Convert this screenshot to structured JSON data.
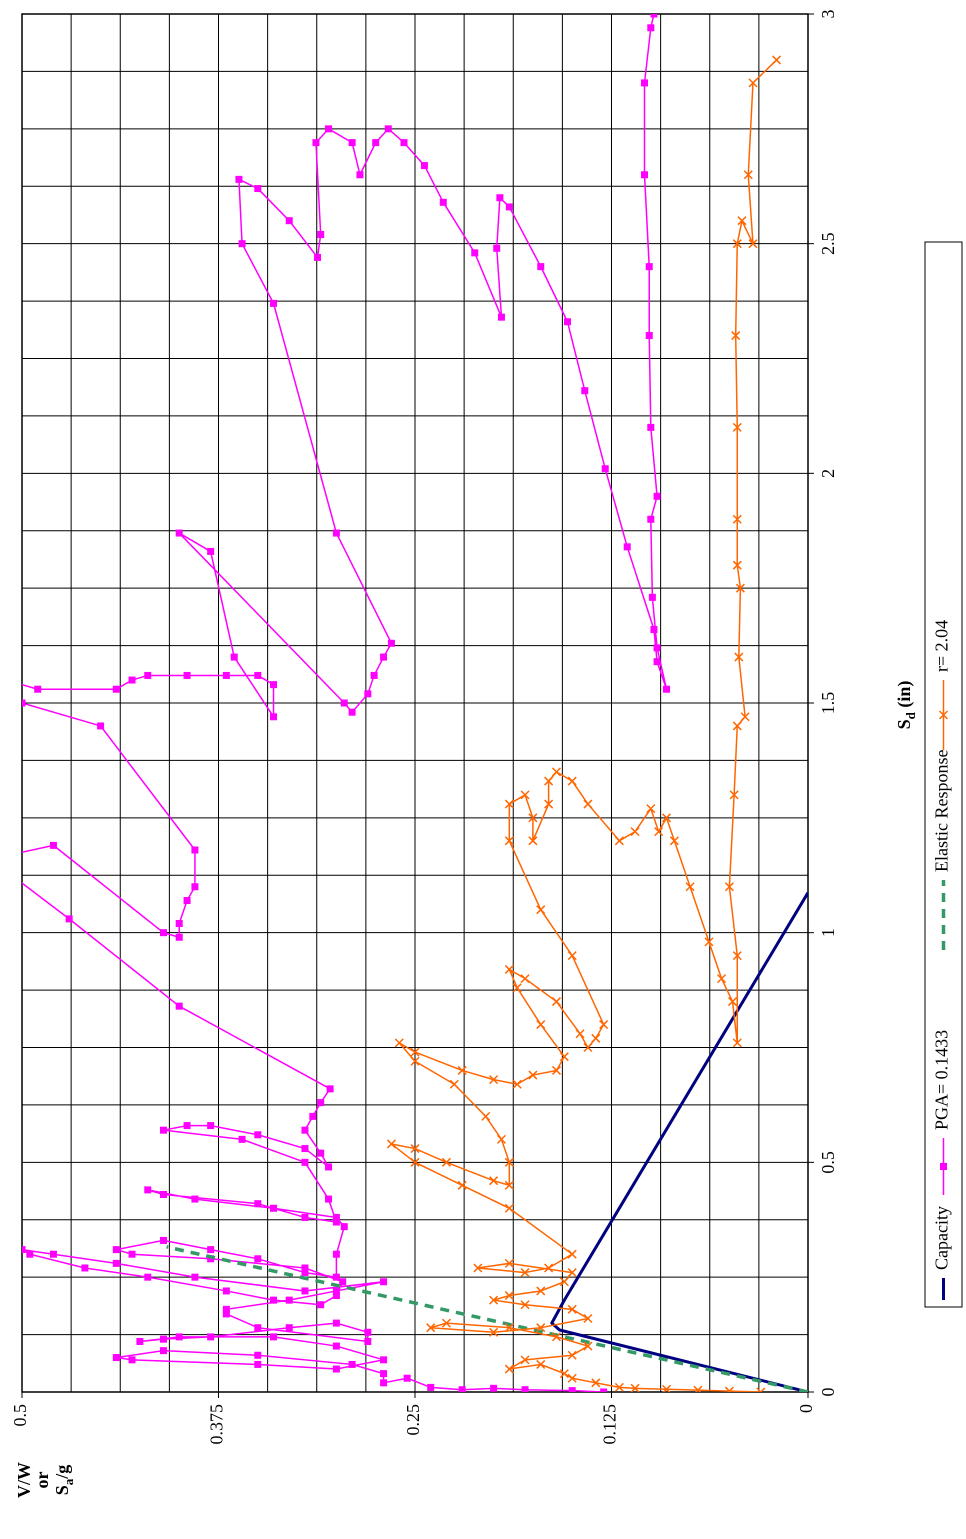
{
  "chart_data": {
    "type": "line",
    "x_label": [
      "S",
      "d",
      " (in)"
    ],
    "y_label": [
      "V/W",
      "or",
      "S",
      "a",
      "/g"
    ],
    "xlim": [
      0,
      3
    ],
    "xticks": [
      0,
      0.5,
      1,
      1.5,
      2,
      2.5,
      3
    ],
    "x_grid_step": 0.125,
    "ylim": [
      0,
      0.5
    ],
    "yticks": [
      0,
      0.125,
      0.25,
      0.375,
      0.5
    ],
    "y_grid_step": 0.03125,
    "grid": true,
    "legend": "bottom",
    "rotation": -90,
    "series": [
      {
        "name": "Capacity",
        "color": "#000080",
        "marker": "none",
        "line_style": "solid",
        "line_width": 3,
        "x": [
          0,
          0.135,
          0.15,
          0.2,
          1.087
        ],
        "values": [
          0,
          0.158,
          0.163,
          0.155,
          0
        ]
      },
      {
        "name": "PGA= 0.1433",
        "color": "#ff00ff",
        "marker": "square",
        "line_style": "solid",
        "line_width": 1.5,
        "x": [
          0,
          0.003,
          0.005,
          0.008,
          0.005,
          0.01,
          0.03,
          0.02,
          0.04,
          0.06,
          0.08,
          0.09,
          0.075,
          0.07,
          0.06,
          0.05,
          0.07,
          0.1,
          0.12,
          0.12,
          0.11,
          0.115,
          0.12,
          0.14,
          0.15,
          0.13,
          0.11,
          0.14,
          0.17,
          0.18,
          0.2,
          0.22,
          0.24,
          0.22,
          0.25,
          0.28,
          0.3,
          0.31,
          0.3,
          0.27,
          0.25,
          0.22,
          0.2,
          0.19,
          0.21,
          0.24,
          0.27,
          0.29,
          0.3,
          0.31,
          0.33,
          0.31,
          0.29,
          0.26,
          0.25,
          0.3,
          0.36,
          0.38,
          0.4,
          0.42,
          0.44,
          0.43,
          0.41,
          0.38,
          0.37,
          0.42,
          0.5,
          0.55,
          0.57,
          0.58,
          0.58,
          0.56,
          0.53,
          0.49,
          0.52,
          0.57,
          0.6,
          0.63,
          0.66,
          0.84,
          1.03,
          1.16,
          1.19,
          1.0,
          0.99,
          1.02,
          1.07,
          1.1,
          1.18,
          1.45,
          1.5,
          1.56,
          1.53,
          1.53,
          1.55,
          1.56,
          1.56,
          1.56,
          1.56,
          1.54,
          1.47,
          1.6,
          1.83,
          1.87,
          1.5,
          1.48,
          1.52,
          1.56,
          1.6,
          1.63,
          1.87,
          2.37,
          2.5,
          2.64,
          2.62,
          2.55,
          2.47,
          2.52,
          2.72,
          2.75,
          2.72,
          2.65,
          2.72,
          2.75,
          2.72,
          2.67,
          2.59,
          2.48,
          2.34,
          2.49,
          2.6,
          2.58,
          2.45,
          2.33,
          2.18,
          2.01,
          1.84,
          1.66,
          1.59,
          1.53,
          1.62,
          1.73,
          1.9,
          1.95,
          2.1,
          2.3,
          2.45,
          2.65,
          2.85,
          2.97,
          3.0
        ],
        "values": [
          0.13,
          0.15,
          0.18,
          0.2,
          0.22,
          0.24,
          0.255,
          0.27,
          0.27,
          0.29,
          0.35,
          0.41,
          0.44,
          0.43,
          0.35,
          0.3,
          0.27,
          0.3,
          0.34,
          0.4,
          0.425,
          0.41,
          0.38,
          0.33,
          0.3,
          0.28,
          0.28,
          0.35,
          0.37,
          0.37,
          0.33,
          0.3,
          0.27,
          0.32,
          0.39,
          0.44,
          0.48,
          0.5,
          0.495,
          0.46,
          0.42,
          0.37,
          0.34,
          0.31,
          0.3,
          0.296,
          0.32,
          0.38,
          0.43,
          0.44,
          0.41,
          0.38,
          0.35,
          0.32,
          0.3,
          0.3,
          0.295,
          0.3,
          0.34,
          0.39,
          0.42,
          0.41,
          0.35,
          0.32,
          0.3,
          0.305,
          0.32,
          0.36,
          0.41,
          0.395,
          0.38,
          0.35,
          0.32,
          0.305,
          0.31,
          0.32,
          0.315,
          0.31,
          0.304,
          0.4,
          0.47,
          0.52,
          0.48,
          0.41,
          0.4,
          0.4,
          0.395,
          0.39,
          0.39,
          0.45,
          0.5,
          0.52,
          0.49,
          0.44,
          0.43,
          0.42,
          0.395,
          0.37,
          0.35,
          0.34,
          0.34,
          0.365,
          0.38,
          0.4,
          0.295,
          0.29,
          0.28,
          0.276,
          0.27,
          0.265,
          0.3,
          0.34,
          0.36,
          0.362,
          0.35,
          0.33,
          0.312,
          0.31,
          0.313,
          0.305,
          0.29,
          0.285,
          0.275,
          0.267,
          0.257,
          0.244,
          0.232,
          0.212,
          0.195,
          0.198,
          0.196,
          0.19,
          0.17,
          0.153,
          0.142,
          0.129,
          0.115,
          0.098,
          0.096,
          0.09,
          0.096,
          0.099,
          0.1,
          0.096,
          0.1,
          0.101,
          0.101,
          0.104,
          0.104,
          0.1,
          0.098
        ]
      },
      {
        "name": "Elastic Response",
        "color": "#339966",
        "marker": "none",
        "line_style": "dashed",
        "line_width": 3.5,
        "x": [
          0,
          0.316
        ],
        "values": [
          0,
          0.408
        ]
      },
      {
        "name": "r= 2.04",
        "color": "#ff6600",
        "marker": "x",
        "line_style": "solid",
        "line_width": 1.5,
        "x": [
          0,
          0.002,
          0.004,
          0.006,
          0.008,
          0.01,
          0.02,
          0.03,
          0.04,
          0.06,
          0.05,
          0.07,
          0.08,
          0.1,
          0.12,
          0.14,
          0.15,
          0.14,
          0.13,
          0.14,
          0.16,
          0.18,
          0.19,
          0.2,
          0.21,
          0.22,
          0.24,
          0.26,
          0.28,
          0.27,
          0.26,
          0.27,
          0.3,
          0.4,
          0.45,
          0.5,
          0.54,
          0.53,
          0.5,
          0.46,
          0.45,
          0.5,
          0.55,
          0.6,
          0.67,
          0.72,
          0.76,
          0.74,
          0.7,
          0.68,
          0.67,
          0.69,
          0.7,
          0.73,
          0.8,
          0.88,
          0.92,
          0.9,
          0.85,
          0.78,
          0.75,
          0.77,
          0.8,
          0.95,
          1.05,
          1.2,
          1.28,
          1.3,
          1.25,
          1.2,
          1.28,
          1.33,
          1.35,
          1.33,
          1.28,
          1.2,
          1.22,
          1.27,
          1.22,
          1.25,
          1.2,
          1.1,
          0.98,
          0.9,
          0.85,
          0.76,
          0.95,
          1.1,
          1.3,
          1.45,
          1.47,
          1.6,
          1.75,
          1.8,
          1.9,
          2.1,
          2.3,
          2.5,
          2.55,
          2.5,
          2.65,
          2.85,
          2.9
        ],
        "values": [
          0.03,
          0.05,
          0.07,
          0.09,
          0.11,
          0.12,
          0.135,
          0.15,
          0.155,
          0.17,
          0.19,
          0.18,
          0.15,
          0.14,
          0.16,
          0.19,
          0.23,
          0.24,
          0.2,
          0.17,
          0.14,
          0.15,
          0.18,
          0.2,
          0.19,
          0.17,
          0.155,
          0.15,
          0.19,
          0.21,
          0.18,
          0.165,
          0.15,
          0.19,
          0.22,
          0.25,
          0.265,
          0.25,
          0.23,
          0.2,
          0.19,
          0.19,
          0.195,
          0.205,
          0.225,
          0.25,
          0.26,
          0.25,
          0.22,
          0.2,
          0.185,
          0.175,
          0.16,
          0.155,
          0.17,
          0.185,
          0.19,
          0.18,
          0.16,
          0.145,
          0.14,
          0.135,
          0.13,
          0.15,
          0.17,
          0.19,
          0.19,
          0.18,
          0.175,
          0.175,
          0.165,
          0.165,
          0.16,
          0.15,
          0.14,
          0.12,
          0.11,
          0.1,
          0.095,
          0.09,
          0.085,
          0.075,
          0.063,
          0.055,
          0.048,
          0.045,
          0.045,
          0.05,
          0.047,
          0.045,
          0.04,
          0.044,
          0.043,
          0.045,
          0.045,
          0.045,
          0.046,
          0.045,
          0.042,
          0.035,
          0.038,
          0.035,
          0.02
        ]
      }
    ]
  }
}
